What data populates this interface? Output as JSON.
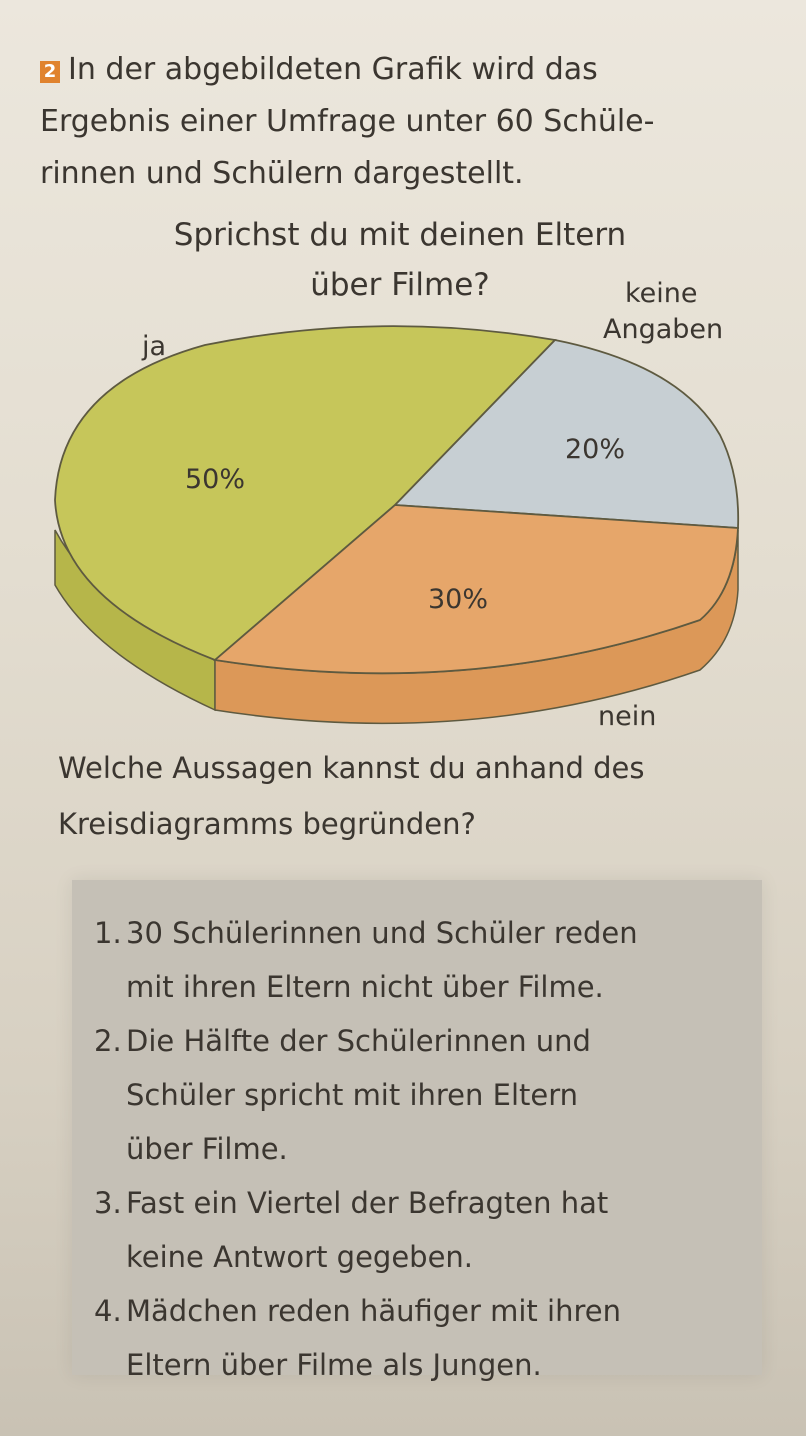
{
  "task": {
    "number": "2",
    "text_line1": "In der abgebildeten Grafik wird das",
    "text_line2": "Ergebnis einer Umfrage unter 60 Schüle-",
    "text_line3": "rinnen und Schülern dargestellt."
  },
  "chart_data": {
    "type": "pie",
    "title_line1": "Sprichst du mit deinen Eltern",
    "title_line2": "über Filme?",
    "slices": [
      {
        "label": "ja",
        "value_label": "50%",
        "value": 50,
        "color": "#c6c65a"
      },
      {
        "label_line1": "keine",
        "label_line2": "Angaben",
        "value_label": "20%",
        "value": 20,
        "color": "#c7cfd3"
      },
      {
        "label": "nein",
        "value_label": "30%",
        "value": 30,
        "color": "#e6a66a"
      }
    ]
  },
  "question": {
    "line1": "Welche Aussagen kannst du anhand des",
    "line2": "Kreisdiagramms begründen?"
  },
  "answers": [
    {
      "num": "1.",
      "line1": "30 Schülerinnen und Schüler reden",
      "line2": "mit ihren Eltern nicht über Filme."
    },
    {
      "num": "2.",
      "line1": "Die Hälfte der Schülerinnen und",
      "line2": "Schüler spricht mit ihren Eltern",
      "line3": "über Filme."
    },
    {
      "num": "3.",
      "line1": "Fast ein Viertel der Befragten hat",
      "line2": "keine Antwort gegeben."
    },
    {
      "num": "4.",
      "line1": "Mädchen reden häufiger mit ihren",
      "line2": "Eltern über Filme als Jungen."
    }
  ]
}
